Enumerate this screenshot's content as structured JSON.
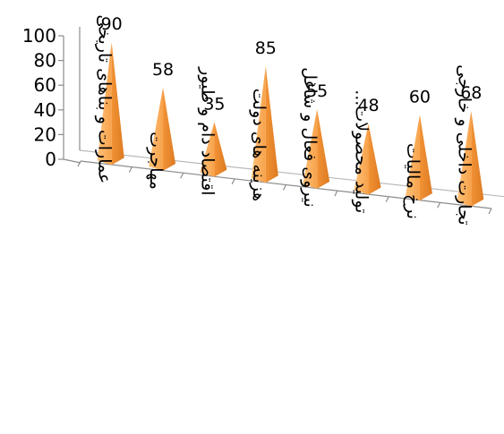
{
  "chart_data": {
    "type": "bar",
    "bar_shape": "pyramid-3d",
    "categories": [
      "عمارات و بناهای تاریخی",
      "مهاجرت",
      "اقتصاد دام و طیور",
      "هزینه های دولت",
      "نیروی فعال و شاغل",
      "تولید محصولات...",
      "نرخ مالیات",
      "تجارت داخلی و خارجی"
    ],
    "values": [
      90,
      58,
      35,
      85,
      55,
      48,
      60,
      68
    ],
    "y_ticks": [
      "0",
      "20",
      "40",
      "60",
      "80",
      "100"
    ],
    "ylim": [
      0,
      100
    ],
    "title": "",
    "xlabel": "",
    "ylabel": "",
    "grid": false,
    "legend": "none",
    "colors": {
      "bar_light": "#ffb866",
      "bar_mid": "#f59a3c",
      "bar_dark": "#d9771f",
      "axis": "#8c8c8c"
    }
  }
}
